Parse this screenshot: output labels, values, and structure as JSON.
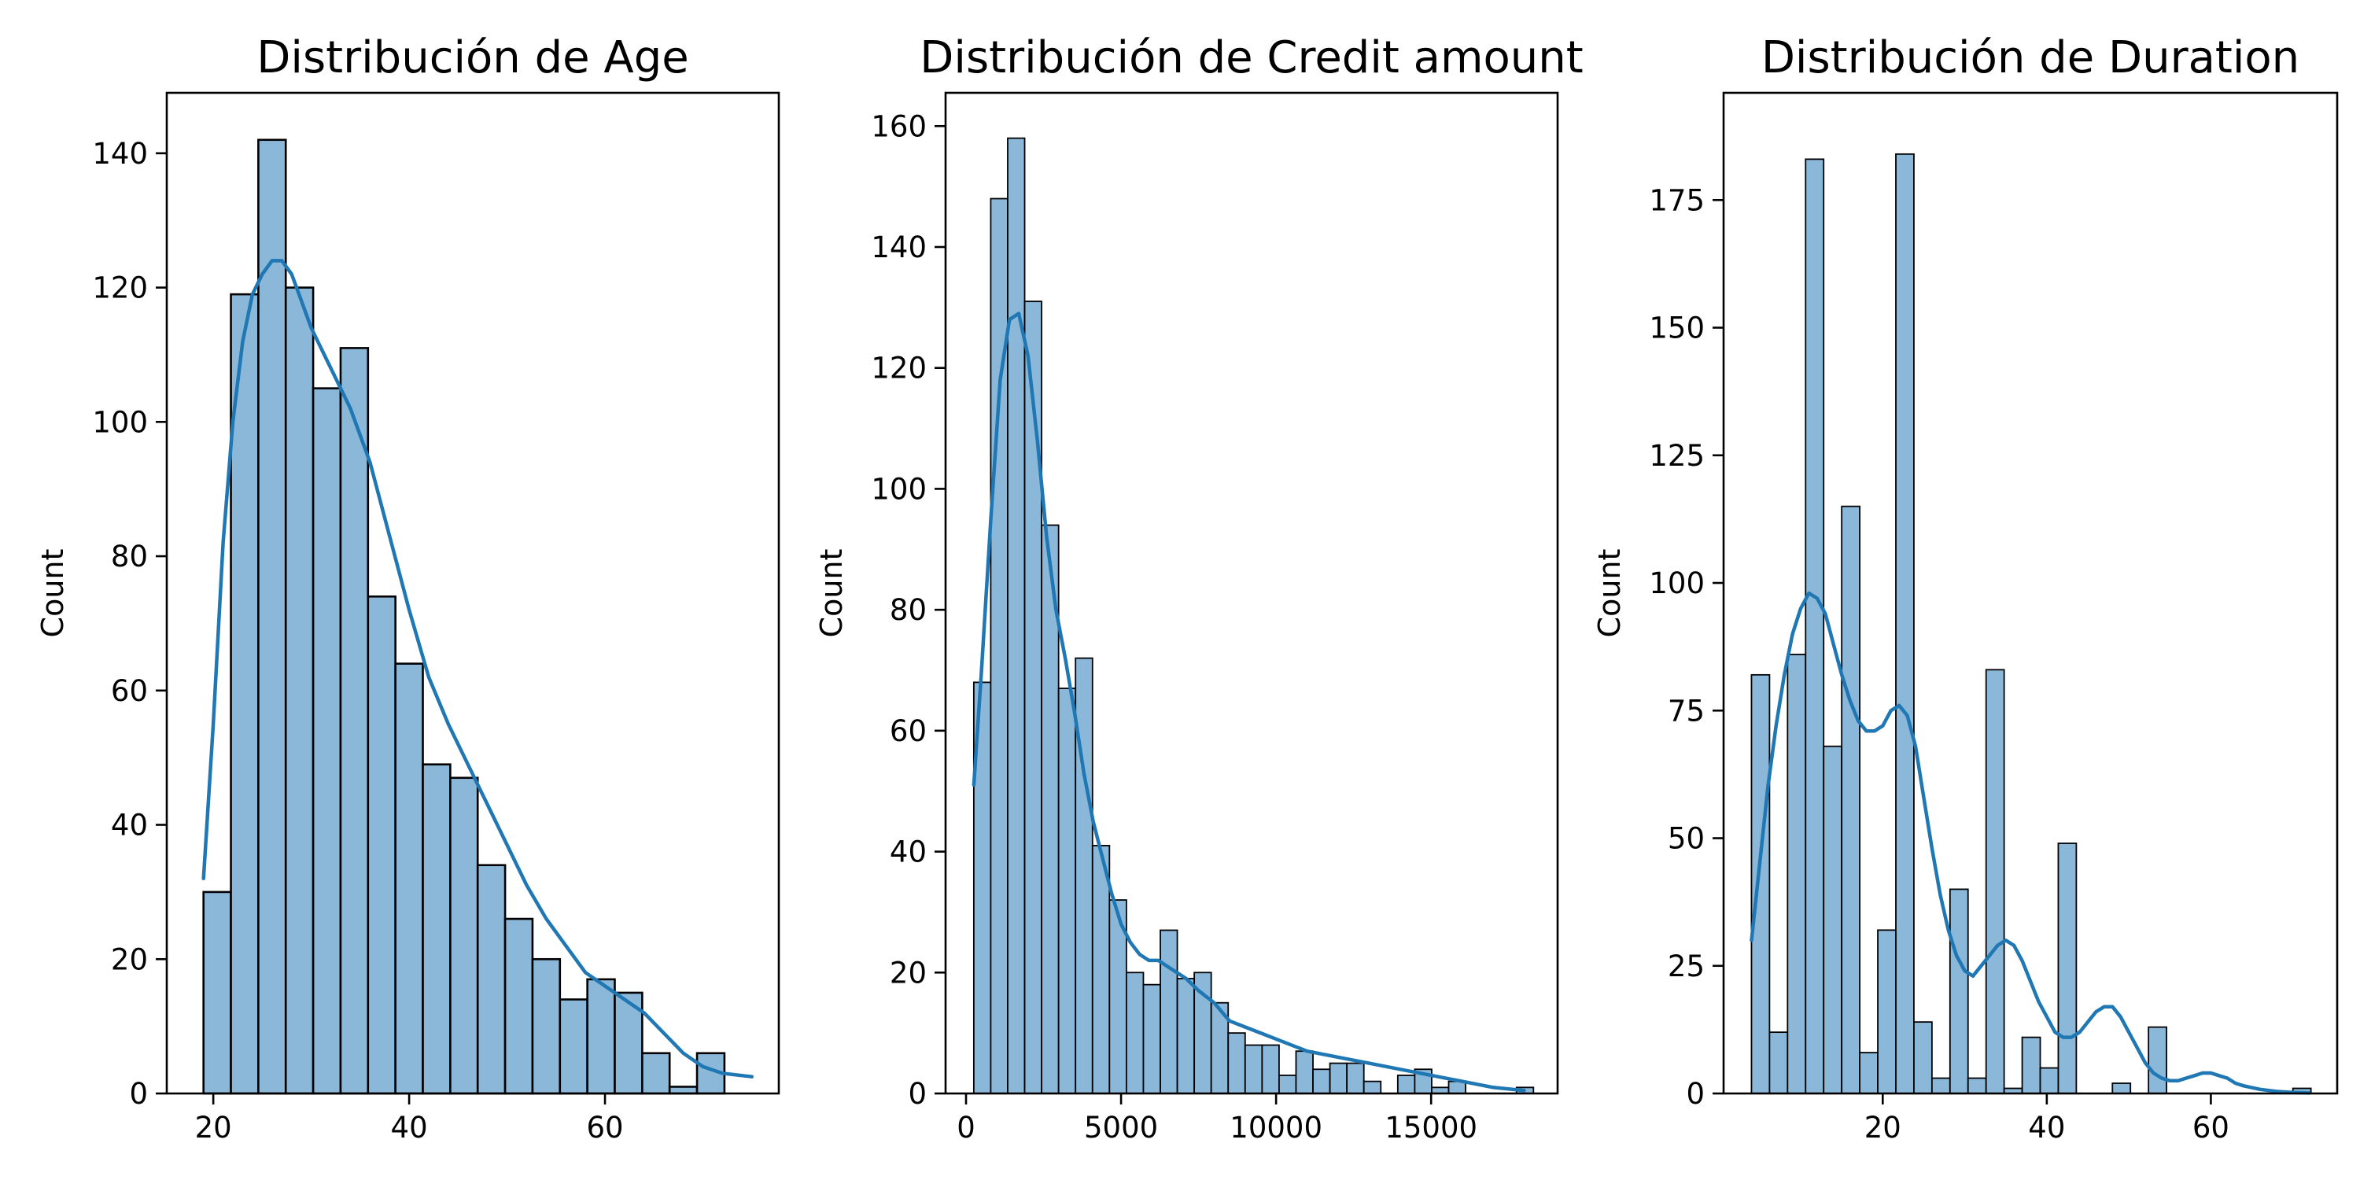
{
  "figure": {
    "background": "#ffffff"
  },
  "style": {
    "bar_fill": "#8bb7d9",
    "bar_edge": "#000000",
    "kde_line": "#1f77b4",
    "axis": "#000000"
  },
  "chart_data": [
    {
      "type": "bar",
      "subtype": "histogram-with-kde",
      "title": "Distribución de Age",
      "xlabel": "",
      "ylabel": "Count",
      "xlim": [
        15.25,
        77.75
      ],
      "ylim": [
        0,
        149
      ],
      "xticks": [
        20,
        40,
        60
      ],
      "yticks": [
        0,
        20,
        40,
        60,
        80,
        100,
        120,
        140
      ],
      "grid": false,
      "bin_start": 19,
      "bin_width": 2.8,
      "values": [
        30,
        119,
        142,
        120,
        105,
        111,
        74,
        64,
        49,
        47,
        34,
        26,
        20,
        14,
        17,
        15,
        6,
        1,
        6
      ],
      "kde": {
        "x": [
          19,
          20,
          21,
          22,
          23,
          24,
          25,
          26,
          27,
          28,
          29,
          30,
          32,
          34,
          36,
          38,
          40,
          42,
          44,
          46,
          48,
          50,
          52,
          54,
          56,
          58,
          60,
          62,
          64,
          66,
          68,
          70,
          72,
          75
        ],
        "y": [
          32,
          55,
          82,
          100,
          112,
          119,
          122,
          124,
          124,
          122,
          118,
          114,
          108,
          102,
          94,
          83,
          72,
          62,
          55,
          49,
          43,
          37,
          31,
          26,
          22,
          18,
          16,
          14,
          12,
          9,
          6,
          4,
          3,
          2.5
        ]
      }
    },
    {
      "type": "bar",
      "subtype": "histogram-with-kde",
      "title": "Distribución de Credit amount",
      "xlabel": "",
      "ylabel": "Count",
      "xlim": [
        -660,
        19080
      ],
      "ylim": [
        0,
        165.5
      ],
      "xticks": [
        0,
        5000,
        10000,
        15000
      ],
      "yticks": [
        0,
        20,
        40,
        60,
        80,
        100,
        120,
        140,
        160
      ],
      "grid": false,
      "bin_start": 250,
      "bin_width": 547,
      "values": [
        68,
        148,
        158,
        131,
        94,
        67,
        72,
        41,
        32,
        20,
        18,
        27,
        19,
        20,
        15,
        10,
        8,
        8,
        3,
        7,
        4,
        5,
        5,
        2,
        0,
        3,
        4,
        1,
        2,
        0,
        0,
        0,
        1
      ],
      "kde": {
        "x": [
          250,
          500,
          800,
          1100,
          1400,
          1700,
          2000,
          2300,
          2600,
          2900,
          3200,
          3500,
          3800,
          4100,
          4400,
          4700,
          5000,
          5300,
          5600,
          5900,
          6200,
          6500,
          6800,
          7100,
          7500,
          8000,
          8500,
          9000,
          9500,
          10000,
          11000,
          12000,
          13000,
          14000,
          15000,
          16000,
          17000,
          18000
        ],
        "y": [
          51,
          70,
          95,
          118,
          128,
          129,
          122,
          108,
          92,
          80,
          72,
          63,
          53,
          45,
          39,
          33,
          28,
          25,
          23,
          22,
          22,
          21,
          20,
          19,
          17,
          15,
          12,
          11,
          10,
          9,
          7,
          6,
          5,
          4,
          3,
          2,
          1,
          0.5
        ]
      }
    },
    {
      "type": "bar",
      "subtype": "histogram-with-kde",
      "title": "Distribución de Duration",
      "xlabel": "",
      "ylabel": "Count",
      "xlim": [
        0.6,
        75.4
      ],
      "ylim": [
        0,
        196
      ],
      "xticks": [
        20,
        40,
        60
      ],
      "yticks": [
        0,
        25,
        50,
        75,
        100,
        125,
        150,
        175
      ],
      "grid": false,
      "bin_start": 4,
      "bin_width": 2.2,
      "values": [
        82,
        12,
        86,
        183,
        68,
        115,
        8,
        32,
        184,
        14,
        3,
        40,
        3,
        83,
        1,
        11,
        5,
        49,
        0,
        0,
        2,
        0,
        13,
        0,
        0,
        0,
        0,
        0,
        0,
        0,
        1
      ],
      "kde": {
        "x": [
          4,
          5,
          6,
          7,
          8,
          9,
          10,
          11,
          12,
          13,
          14,
          15,
          16,
          17,
          18,
          19,
          20,
          21,
          22,
          23,
          24,
          25,
          26,
          27,
          28,
          29,
          30,
          31,
          32,
          33,
          34,
          35,
          36,
          37,
          38,
          39,
          40,
          41,
          42,
          43,
          44,
          45,
          46,
          47,
          48,
          49,
          50,
          51,
          52,
          53,
          54,
          55,
          56,
          57,
          58,
          59,
          60,
          61,
          62,
          63,
          64,
          66,
          68,
          70,
          72
        ],
        "y": [
          30,
          45,
          60,
          72,
          82,
          90,
          95,
          98,
          97,
          94,
          88,
          82,
          77,
          73,
          71,
          71,
          72,
          75,
          76,
          74,
          68,
          58,
          48,
          39,
          32,
          27,
          24,
          23,
          25,
          27,
          29,
          30,
          29,
          26,
          22,
          18,
          15,
          12,
          11,
          11,
          12,
          14,
          16,
          17,
          17,
          15,
          12,
          9,
          6,
          4,
          3,
          2.5,
          2.5,
          3,
          3.5,
          4,
          4,
          3.5,
          3,
          2,
          1.5,
          0.8,
          0.4,
          0.2,
          0.1
        ]
      }
    }
  ]
}
